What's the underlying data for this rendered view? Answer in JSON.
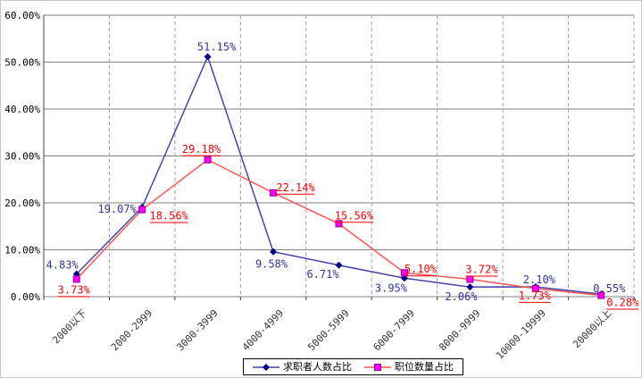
{
  "chart_data": {
    "type": "line",
    "title": "",
    "xlabel": "",
    "ylabel": "",
    "categories": [
      "2000以下",
      "2000-2999",
      "3000-3999",
      "4000-4999",
      "5000-5999",
      "6000-7999",
      "8000-9999",
      "10000-19999",
      "20000以上"
    ],
    "series": [
      {
        "name": "求职者人数占比",
        "values": [
          4.83,
          19.07,
          51.15,
          9.58,
          6.71,
          3.95,
          2.06,
          2.1,
          0.55
        ],
        "labels": [
          "4.83%",
          "19.07%",
          "51.15%",
          "9.58%",
          "6.71%",
          "3.95%",
          "2.06%",
          "2.10%",
          "0.55%"
        ],
        "color": "#4444AA",
        "marker": "diamond",
        "marker_color": "#000080",
        "label_color": "#3333A0",
        "label_underline": false
      },
      {
        "name": "职位数量占比",
        "values": [
          3.73,
          18.56,
          29.18,
          22.14,
          15.56,
          5.1,
          3.72,
          1.73,
          0.28
        ],
        "labels": [
          "3.73%",
          "18.56%",
          "29.18%",
          "22.14%",
          "15.56%",
          "5.10%",
          "3.72%",
          "1.73%",
          "0.28%"
        ],
        "color": "#FF5555",
        "marker": "square",
        "marker_color": "#FF00FF",
        "marker_edge_color": "#990099",
        "label_color": "#FF0000",
        "label_underline": true
      }
    ],
    "ylim": [
      0,
      60
    ],
    "y_tick_step": 10,
    "y_tick_labels": [
      "60.00%",
      "50.00%",
      "40.00%",
      "30.00%",
      "20.00%",
      "10.00%",
      "0.00%"
    ],
    "grid": {
      "horizontal": "solid",
      "vertical": "dashed"
    },
    "legend_position": "bottom",
    "axis_color": "#404040",
    "hgrid_color": "#808080",
    "vgrid_color": "#A0A0A0",
    "axis_text_color": "#000000",
    "xlabel_text_color": "#333333"
  }
}
